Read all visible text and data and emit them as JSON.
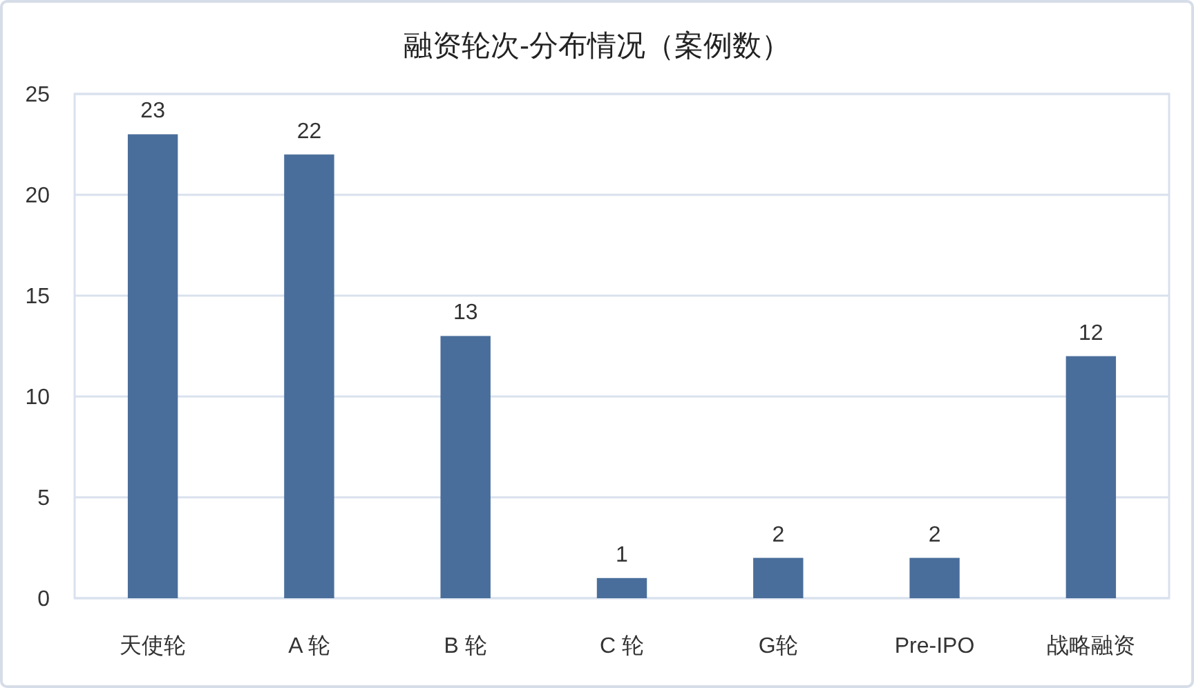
{
  "chart_data": {
    "type": "bar",
    "title": "融资轮次-分布情况（案例数）",
    "categories": [
      "天使轮",
      "A 轮",
      "B 轮",
      "C 轮",
      "G轮",
      "Pre-IPO",
      "战略融资"
    ],
    "values": [
      23,
      22,
      13,
      1,
      2,
      2,
      12
    ],
    "color": "#4a6e9b",
    "ylim": [
      0,
      25
    ],
    "yticks": [
      0,
      5,
      10,
      15,
      20,
      25
    ],
    "grid": "y",
    "data_labels": true
  }
}
